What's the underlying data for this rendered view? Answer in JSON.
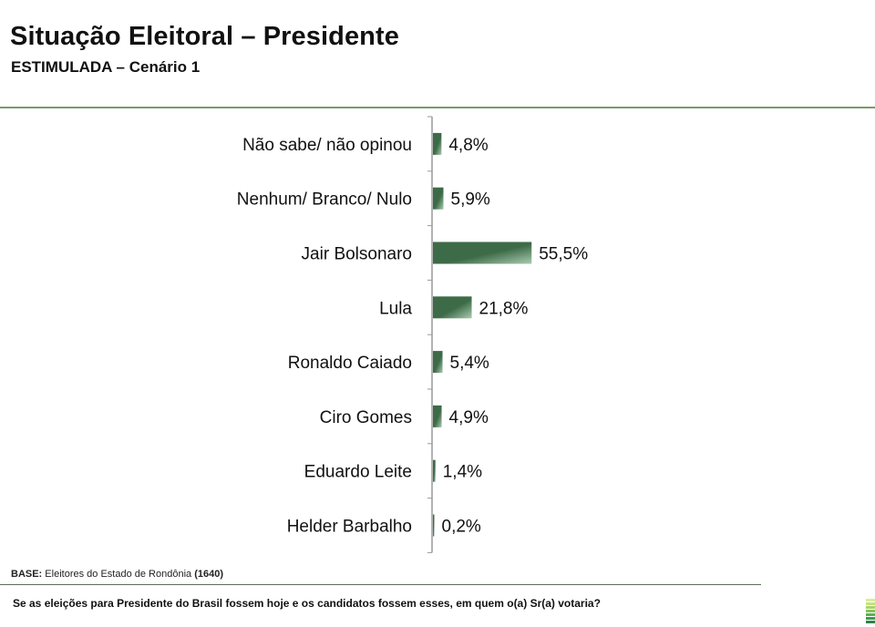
{
  "header": {
    "title": "Situação Eleitoral – Presidente",
    "subtitle": "ESTIMULADA – Cenário 1"
  },
  "footer": {
    "base_label": "BASE:",
    "base_text": "Eleitores do Estado de Rondônia",
    "base_count": "(1640)",
    "question": "Se as eleições para Presidente do Brasil fossem hoje e os candidatos fossem esses, em quem o(a) Sr(a) votaria?"
  },
  "colors": {
    "bar_dark": "#3d6b47",
    "bar_light": "#9cc0a2",
    "axis": "#9a9a9a",
    "rule": "#7a9a6e",
    "logo_stripes": [
      "#d9ec9a",
      "#c5e27c",
      "#a9d468",
      "#85c25c",
      "#5fae55",
      "#3f9a4f",
      "#2d8547"
    ]
  },
  "chart_data": {
    "type": "bar",
    "orientation": "horizontal",
    "title": "Situação Eleitoral – Presidente",
    "subtitle": "ESTIMULADA – Cenário 1",
    "xlabel": "",
    "ylabel": "",
    "unit": "%",
    "xlim": [
      0,
      100
    ],
    "grid": false,
    "legend": "none",
    "categories": [
      "Não sabe/ não opinou",
      "Nenhum/ Branco/ Nulo",
      "Jair Bolsonaro",
      "Lula",
      "Ronaldo Caiado",
      "Ciro Gomes",
      "Eduardo Leite",
      "Helder Barbalho"
    ],
    "values": [
      4.8,
      5.9,
      55.5,
      21.8,
      5.4,
      4.9,
      1.4,
      0.2
    ],
    "data_labels": [
      "4,8%",
      "5,9%",
      "55,5%",
      "21,8%",
      "5,4%",
      "4,9%",
      "1,4%",
      "0,2%"
    ]
  }
}
